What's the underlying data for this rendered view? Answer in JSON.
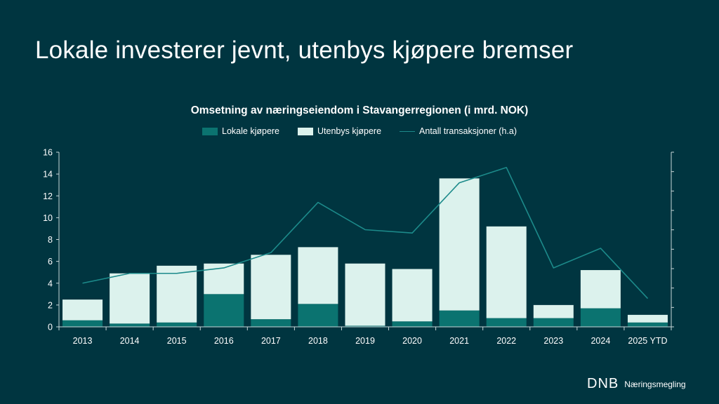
{
  "slide": {
    "title": "Lokale investerer jevnt, utenbys kjøpere bremser"
  },
  "brand": {
    "logo_mark": "DNB",
    "logo_text": "Næringsmegling",
    "background_color": "#003540"
  },
  "chart_data": {
    "type": "bar",
    "stacked": true,
    "title": "Omsetning av næringseiendom i Stavangerregionen (i mrd. NOK)",
    "categories": [
      "2013",
      "2014",
      "2015",
      "2016",
      "2017",
      "2018",
      "2019",
      "2020",
      "2021",
      "2022",
      "2023",
      "2024",
      "2025 YTD"
    ],
    "series": [
      {
        "name": "Lokale kjøpere",
        "color": "#0b7370",
        "values": [
          0.6,
          0.3,
          0.4,
          3.0,
          0.7,
          2.1,
          0.1,
          0.5,
          1.5,
          0.8,
          0.8,
          1.7,
          0.4
        ]
      },
      {
        "name": "Utenbys kjøpere",
        "color": "#dcf2ed",
        "values": [
          1.9,
          4.6,
          5.2,
          2.8,
          5.9,
          5.2,
          5.7,
          4.8,
          12.1,
          8.4,
          1.2,
          3.5,
          0.7
        ]
      }
    ],
    "line_series": {
      "name": "Antall transaksjoner (h.a)",
      "color": "#1c8a8a",
      "axis": "secondary",
      "values": [
        4.0,
        4.9,
        4.9,
        5.4,
        6.8,
        11.4,
        8.9,
        8.6,
        13.2,
        14.6,
        5.4,
        7.2,
        2.6
      ]
    },
    "y_axis": {
      "min": 0,
      "max": 16,
      "ticks": [
        "0",
        "2",
        "4",
        "6",
        "8",
        "10",
        "12",
        "14",
        "16"
      ]
    },
    "secondary_axis_labels": false,
    "legend_position": "top-center",
    "grid": false
  }
}
